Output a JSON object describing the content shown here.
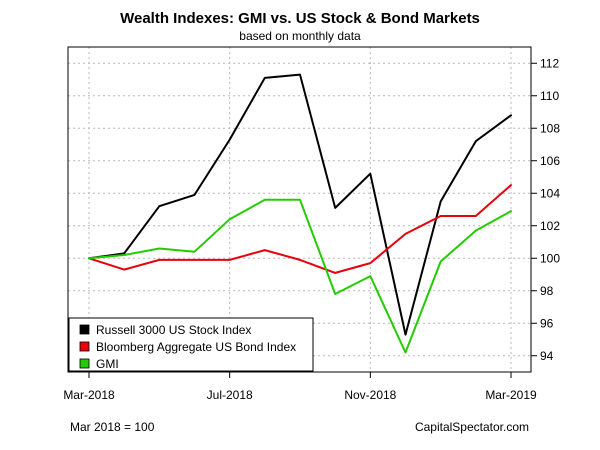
{
  "chart_data": {
    "type": "line",
    "title": "Wealth Indexes: GMI vs. US Stock & Bond Markets",
    "subtitle": "based on monthly data",
    "x": [
      "Mar-2018",
      "Apr-2018",
      "May-2018",
      "Jun-2018",
      "Jul-2018",
      "Aug-2018",
      "Sep-2018",
      "Oct-2018",
      "Nov-2018",
      "Dec-2018",
      "Jan-2019",
      "Feb-2019",
      "Mar-2019"
    ],
    "x_tick_labels": [
      "Mar-2018",
      "Jul-2018",
      "Nov-2018",
      "Mar-2019"
    ],
    "x_tick_indices": [
      0,
      4,
      8,
      12
    ],
    "ylim": [
      93,
      113
    ],
    "y_ticks": [
      94,
      96,
      98,
      100,
      102,
      104,
      106,
      108,
      110,
      112
    ],
    "y_axis_side": "right",
    "grid": true,
    "legend_position": "bottom-left",
    "series": [
      {
        "name": "Russell 3000 US Stock Index",
        "color": "#000000",
        "values": [
          100.0,
          100.3,
          103.2,
          103.9,
          107.3,
          111.1,
          111.3,
          103.1,
          105.2,
          95.3,
          103.5,
          107.2,
          108.8
        ]
      },
      {
        "name": "Bloomberg Aggregate US Bond Index",
        "color": "#e8000b",
        "values": [
          100.0,
          99.3,
          99.9,
          99.9,
          99.9,
          100.5,
          99.9,
          99.1,
          99.7,
          101.5,
          102.6,
          102.6,
          104.5
        ]
      },
      {
        "name": "GMI",
        "color": "#22cc00",
        "values": [
          100.0,
          100.2,
          100.6,
          100.4,
          102.4,
          103.6,
          103.6,
          97.8,
          98.9,
          94.2,
          99.8,
          101.7,
          102.9
        ]
      }
    ],
    "footnote_left": "Mar 2018 = 100",
    "footnote_right": "CapitalSpectator.com"
  }
}
